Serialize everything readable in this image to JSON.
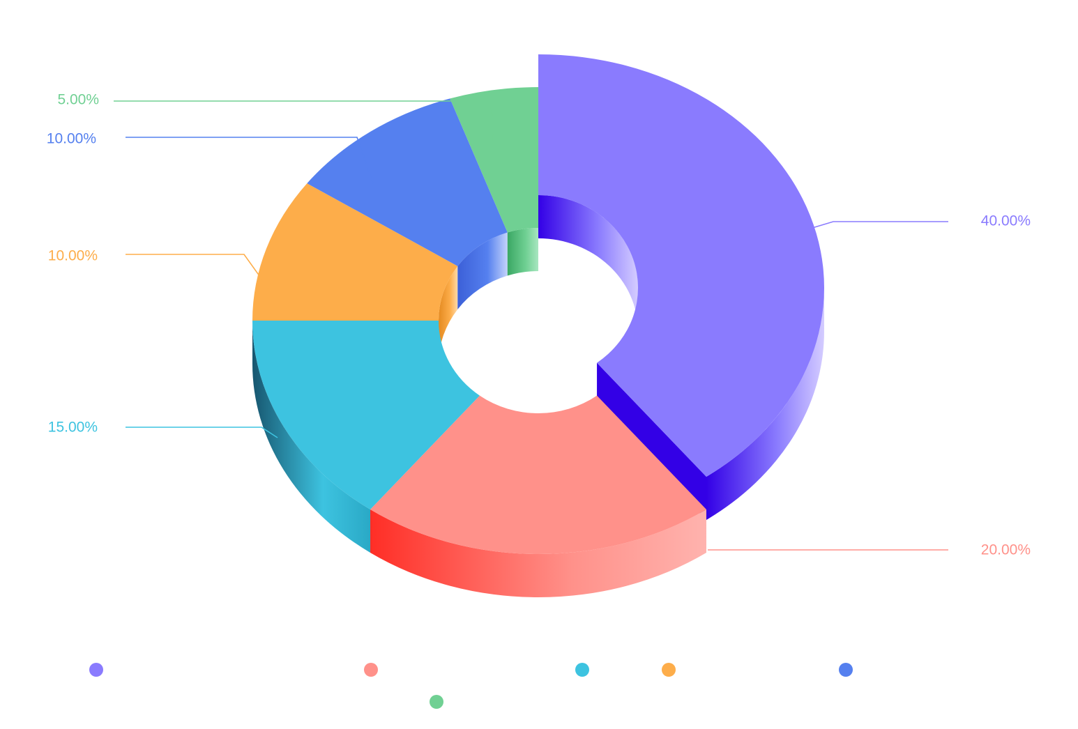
{
  "chart_data": {
    "type": "pie",
    "variant": "3d-donut",
    "title": "",
    "legend_position": "bottom",
    "slices": [
      {
        "label": "40.00%",
        "value": 40,
        "color": "#8a7bfe",
        "dark": "#3300e6",
        "light": "#d4ccff"
      },
      {
        "label": "20.00%",
        "value": 20,
        "color": "#ff918a",
        "dark": "#ff2e26",
        "light": "#ffb3ae"
      },
      {
        "label": "15.00%",
        "value": 15,
        "color": "#3dc3e0",
        "dark": "#17566f",
        "light": "#2aa9c6"
      },
      {
        "label": "10.00%",
        "value": 10,
        "color": "#fdad4a",
        "dark": "#e48a20",
        "light": "#ffd9a8"
      },
      {
        "label": "10.00%",
        "value": 10,
        "color": "#5580ef",
        "dark": "#3c60d8",
        "light": "#c4d3fb"
      },
      {
        "label": "5.00%",
        "value": 5,
        "color": "#70d093",
        "dark": "#3aa764",
        "light": "#a8e6c0"
      }
    ]
  }
}
